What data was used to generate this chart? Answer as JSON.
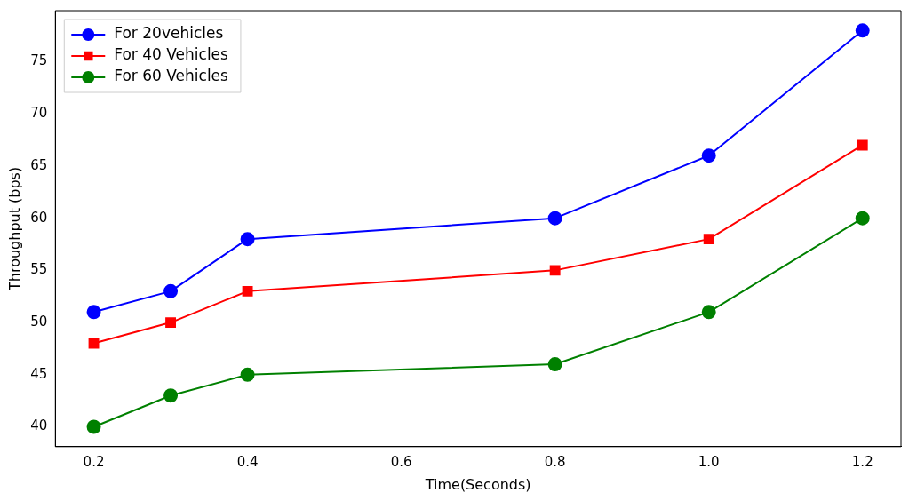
{
  "chart_data": {
    "type": "line",
    "xlabel": "Time(Seconds)",
    "ylabel": "Throughput (bps)",
    "x": [
      0.2,
      0.3,
      0.4,
      0.8,
      1.0,
      1.2
    ],
    "series": [
      {
        "name": "For 20vehicles",
        "color": "#0000ff",
        "marker": "circle",
        "values": [
          51,
          53,
          58,
          60,
          66,
          78
        ]
      },
      {
        "name": "For 40 Vehicles",
        "color": "#ff0000",
        "marker": "square",
        "values": [
          48,
          50,
          53,
          55,
          58,
          67
        ]
      },
      {
        "name": "For 60 Vehicles",
        "color": "#008000",
        "marker": "circle",
        "values": [
          40,
          43,
          45,
          46,
          51,
          60
        ]
      }
    ],
    "xlim": [
      0.15,
      1.25
    ],
    "xticks": [
      {
        "value": 0.2,
        "label": "0.2"
      },
      {
        "value": 0.4,
        "label": "0.4"
      },
      {
        "value": 0.6,
        "label": "0.6"
      },
      {
        "value": 0.8,
        "label": "0.8"
      },
      {
        "value": 1.0,
        "label": "1.0"
      },
      {
        "value": 1.2,
        "label": "1.2"
      }
    ],
    "ylim": [
      38.1,
      79.9
    ],
    "yticks": [
      40,
      45,
      50,
      55,
      60,
      65,
      70,
      75
    ],
    "grid": false,
    "legend": "top left",
    "line_style": "solid"
  }
}
